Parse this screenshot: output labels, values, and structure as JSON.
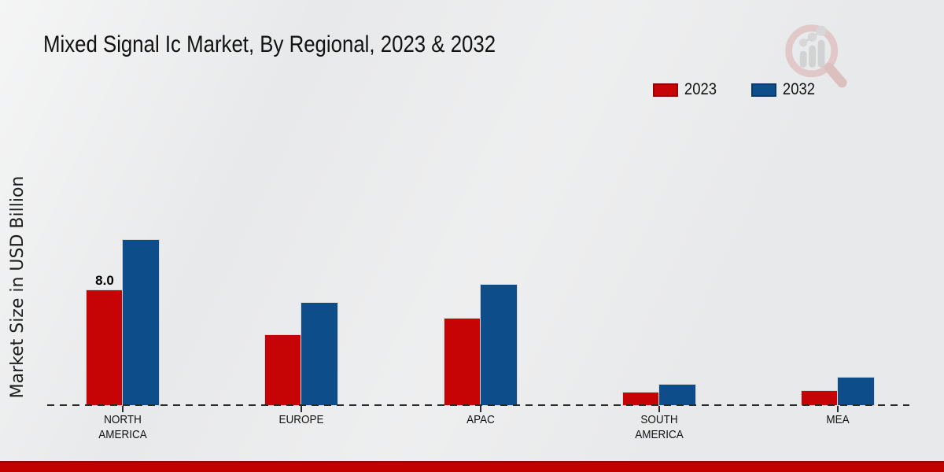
{
  "title": "Mixed Signal Ic Market, By Regional, 2023 & 2032",
  "y_axis_label": "Market Size in USD Billion",
  "colors": {
    "background": "#e8e9ea",
    "series_2023": "#c60405",
    "series_2023_border": "#930303",
    "series_2032": "#0d4d8a",
    "series_2032_border": "#093a68",
    "axis": "#2b2b2b",
    "footer": "#c00100",
    "footer_edge": "#8d0b04"
  },
  "icons": {
    "watermark": "magnifier-bar-chart-icon"
  },
  "legend": {
    "position": "top-right",
    "items": [
      {
        "label": "2023",
        "color": "#c60405"
      },
      {
        "label": "2032",
        "color": "#0d4d8a"
      }
    ]
  },
  "chart_data": {
    "type": "bar",
    "title": "Mixed Signal Ic Market, By Regional, 2023 & 2032",
    "xlabel": "",
    "ylabel": "Market Size in USD Billion",
    "categories": [
      "NORTH AMERICA",
      "EUROPE",
      "APAC",
      "SOUTH AMERICA",
      "MEA"
    ],
    "series": [
      {
        "name": "2023",
        "color": "#c60405",
        "border_color": "#930303",
        "values": [
          8.0,
          4.9,
          6.0,
          0.9,
          1.0
        ]
      },
      {
        "name": "2032",
        "color": "#0d4d8a",
        "border_color": "#093a68",
        "values": [
          11.5,
          7.1,
          8.4,
          1.4,
          1.9
        ]
      }
    ],
    "data_labels": [
      {
        "series_index": 0,
        "category_index": 0,
        "text": "8.0"
      }
    ],
    "ylim": [
      0,
      12
    ],
    "grid": false,
    "x_axis_style": "dashed",
    "legend_position": "top-right"
  }
}
